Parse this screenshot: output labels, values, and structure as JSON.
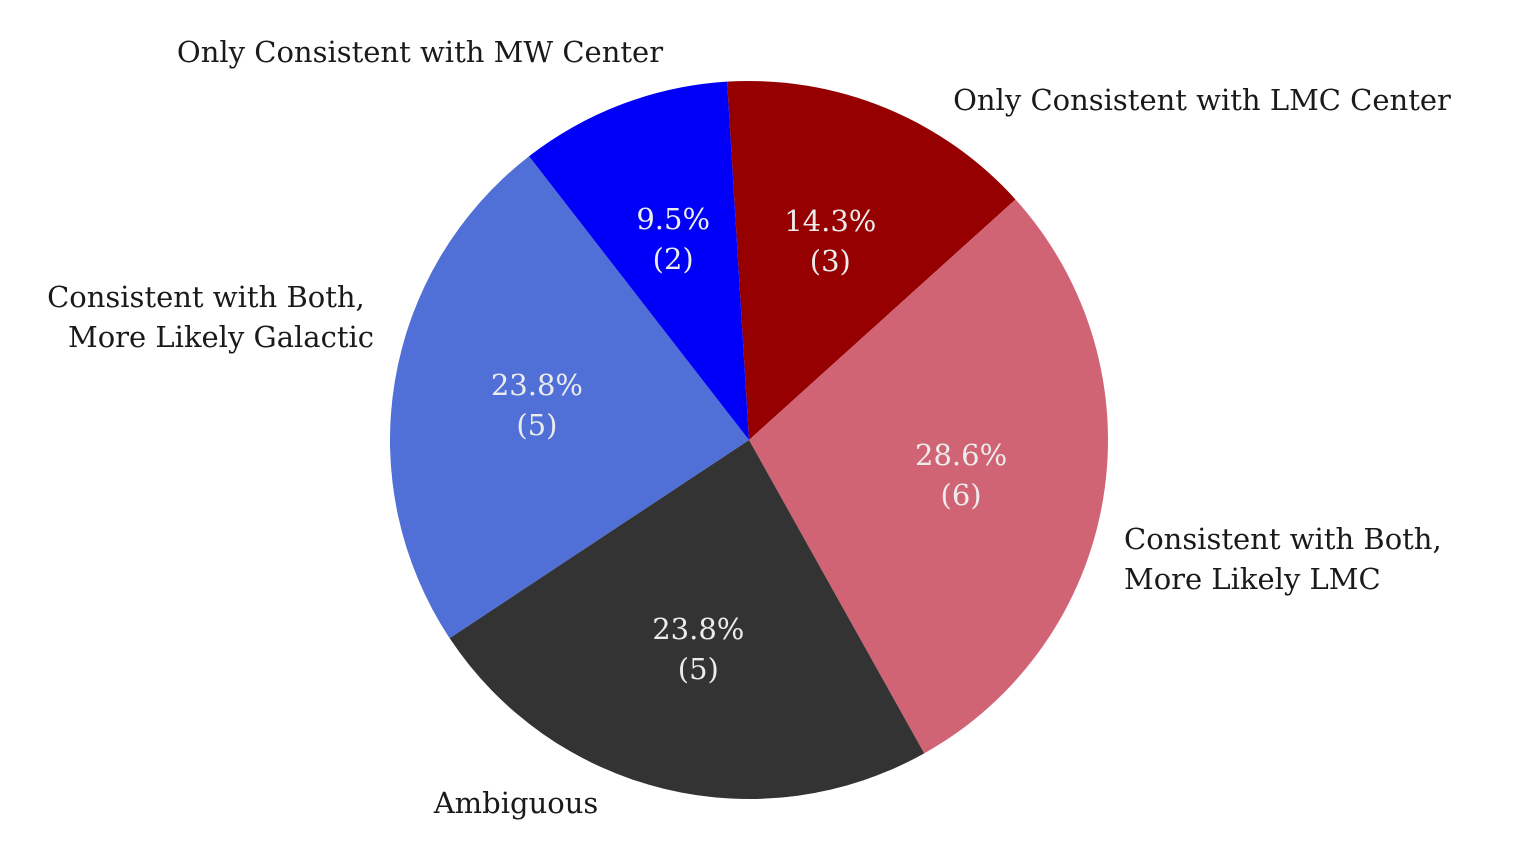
{
  "chart_data": {
    "type": "pie",
    "title": "",
    "start_angle_deg": -3.5,
    "direction": "clockwise",
    "slices": [
      {
        "category": "Only Consistent with LMC Center",
        "count": 3,
        "percent_label": "14.3%",
        "count_label": "(3)",
        "color": "#960000"
      },
      {
        "category": "Consistent with Both, More Likely LMC",
        "count": 6,
        "percent_label": "28.6%",
        "count_label": "(6)",
        "color": "#d06474"
      },
      {
        "category": "Ambiguous",
        "count": 5,
        "percent_label": "23.8%",
        "count_label": "(5)",
        "color": "#333333"
      },
      {
        "category": "Consistent with Both, More Likely Galactic",
        "count": 5,
        "percent_label": "23.8%",
        "count_label": "(5)",
        "color": "#5070d8"
      },
      {
        "category": "Only Consistent with MW Center",
        "count": 2,
        "percent_label": "9.5%",
        "count_label": "(2)",
        "color": "#0000f8"
      }
    ],
    "outer_labels": {
      "lmc_center": [
        "Only Consistent with LMC Center"
      ],
      "lmc_likely": [
        "Consistent with Both,",
        "More Likely LMC"
      ],
      "ambiguous": [
        "Ambiguous"
      ],
      "galactic_likely": [
        "Consistent with Both,",
        "More Likely Galactic"
      ],
      "mw_center": [
        "Only Consistent with MW Center"
      ]
    }
  }
}
